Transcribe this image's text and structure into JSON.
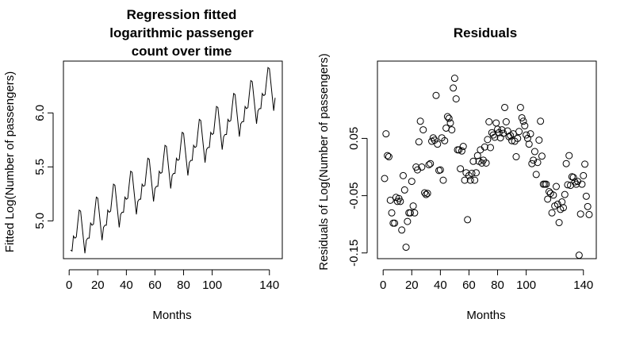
{
  "chart_data": [
    {
      "type": "line",
      "title_lines": [
        "Regression fitted",
        "logarithmic passenger",
        "count over time"
      ],
      "xlabel": "Months",
      "ylabel": "Fitted Log(Number of passengers)",
      "xlim": [
        -4,
        149
      ],
      "ylim": [
        4.65,
        6.48
      ],
      "xticks": [
        0,
        20,
        40,
        60,
        80,
        100,
        140
      ],
      "yticks": [
        5.0,
        5.5,
        6.0
      ],
      "ytick_labels": [
        "5.0",
        "5.5",
        "6.0"
      ],
      "x": [
        1,
        2,
        3,
        4,
        5,
        6,
        7,
        8,
        9,
        10,
        11,
        12,
        13,
        14,
        15,
        16,
        17,
        18,
        19,
        20,
        21,
        22,
        23,
        24,
        25,
        26,
        27,
        28,
        29,
        30,
        31,
        32,
        33,
        34,
        35,
        36,
        37,
        38,
        39,
        40,
        41,
        42,
        43,
        44,
        45,
        46,
        47,
        48,
        49,
        50,
        51,
        52,
        53,
        54,
        55,
        56,
        57,
        58,
        59,
        60,
        61,
        62,
        63,
        64,
        65,
        66,
        67,
        68,
        69,
        70,
        71,
        72,
        73,
        74,
        75,
        76,
        77,
        78,
        79,
        80,
        81,
        82,
        83,
        84,
        85,
        86,
        87,
        88,
        89,
        90,
        91,
        92,
        93,
        94,
        95,
        96,
        97,
        98,
        99,
        100,
        101,
        102,
        103,
        104,
        105,
        106,
        107,
        108,
        109,
        110,
        111,
        112,
        113,
        114,
        115,
        116,
        117,
        118,
        119,
        120,
        121,
        122,
        123,
        124,
        125,
        126,
        127,
        128,
        129,
        130,
        131,
        132,
        133,
        134,
        135,
        136,
        137,
        138,
        139,
        140,
        141,
        142,
        143,
        144
      ],
      "y": [
        4.73,
        4.72,
        4.86,
        4.84,
        4.85,
        4.98,
        5.1,
        5.09,
        4.96,
        4.83,
        4.7,
        4.82,
        4.84,
        4.84,
        4.98,
        4.96,
        4.97,
        5.1,
        5.22,
        5.21,
        5.08,
        4.95,
        4.82,
        4.94,
        4.96,
        4.96,
        5.1,
        5.08,
        5.09,
        5.22,
        5.34,
        5.33,
        5.2,
        5.07,
        4.94,
        5.06,
        5.08,
        5.08,
        5.22,
        5.2,
        5.21,
        5.34,
        5.46,
        5.45,
        5.32,
        5.19,
        5.06,
        5.18,
        5.2,
        5.2,
        5.34,
        5.32,
        5.33,
        5.46,
        5.58,
        5.57,
        5.44,
        5.31,
        5.18,
        5.3,
        5.32,
        5.32,
        5.46,
        5.44,
        5.45,
        5.58,
        5.7,
        5.69,
        5.56,
        5.43,
        5.3,
        5.42,
        5.44,
        5.44,
        5.58,
        5.56,
        5.57,
        5.7,
        5.82,
        5.81,
        5.68,
        5.55,
        5.42,
        5.54,
        5.56,
        5.56,
        5.7,
        5.68,
        5.69,
        5.82,
        5.94,
        5.93,
        5.8,
        5.67,
        5.54,
        5.66,
        5.68,
        5.68,
        5.82,
        5.8,
        5.81,
        5.94,
        6.06,
        6.05,
        5.92,
        5.79,
        5.66,
        5.78,
        5.8,
        5.8,
        5.94,
        5.92,
        5.93,
        6.06,
        6.18,
        6.17,
        6.04,
        5.91,
        5.78,
        5.9,
        5.92,
        5.92,
        6.06,
        6.04,
        6.05,
        6.18,
        6.3,
        6.29,
        6.16,
        6.03,
        5.9,
        6.02,
        6.04,
        6.04,
        6.18,
        6.16,
        6.17,
        6.3,
        6.42,
        6.41,
        6.28,
        6.15,
        6.02,
        6.14
      ]
    },
    {
      "type": "scatter",
      "title": "Residuals",
      "xlabel": "Months",
      "ylabel": "Residuals of Log(Number of passengers)",
      "xlim": [
        -4,
        149
      ],
      "ylim": [
        -0.16,
        0.185
      ],
      "xticks": [
        0,
        20,
        40,
        60,
        80,
        100,
        140
      ],
      "yticks": [
        -0.15,
        -0.05,
        0.05
      ],
      "ytick_labels": [
        "-0.15",
        "-0.05",
        "0.05"
      ],
      "x": [
        1,
        2,
        3,
        4,
        5,
        6,
        7,
        8,
        9,
        10,
        11,
        12,
        13,
        14,
        15,
        16,
        17,
        18,
        19,
        20,
        21,
        22,
        23,
        24,
        25,
        26,
        27,
        28,
        29,
        30,
        31,
        32,
        33,
        34,
        35,
        36,
        37,
        38,
        39,
        40,
        41,
        42,
        43,
        44,
        45,
        46,
        47,
        48,
        49,
        50,
        51,
        52,
        53,
        54,
        55,
        56,
        57,
        58,
        59,
        60,
        61,
        62,
        63,
        64,
        65,
        66,
        67,
        68,
        69,
        70,
        71,
        72,
        73,
        74,
        75,
        76,
        77,
        78,
        79,
        80,
        81,
        82,
        83,
        84,
        85,
        86,
        87,
        88,
        89,
        90,
        91,
        92,
        93,
        94,
        95,
        96,
        97,
        98,
        99,
        100,
        101,
        102,
        103,
        104,
        105,
        106,
        107,
        108,
        109,
        110,
        111,
        112,
        113,
        114,
        115,
        116,
        117,
        118,
        119,
        120,
        121,
        122,
        123,
        124,
        125,
        126,
        127,
        128,
        129,
        130,
        131,
        132,
        133,
        134,
        135,
        136,
        137,
        138,
        139,
        140,
        141,
        142,
        143,
        144
      ],
      "y": [
        -0.02,
        0.058,
        0.02,
        0.018,
        -0.058,
        -0.08,
        -0.098,
        -0.098,
        -0.053,
        -0.06,
        -0.055,
        -0.06,
        -0.11,
        -0.015,
        -0.04,
        -0.14,
        -0.095,
        -0.08,
        -0.08,
        -0.025,
        -0.068,
        -0.08,
        0.0,
        -0.005,
        0.044,
        0.08,
        0.0,
        0.065,
        -0.045,
        -0.048,
        -0.046,
        0.004,
        0.006,
        0.045,
        0.051,
        0.047,
        0.125,
        0.04,
        -0.006,
        -0.005,
        0.051,
        -0.023,
        0.046,
        0.068,
        0.088,
        0.085,
        0.077,
        0.065,
        0.138,
        0.155,
        0.119,
        0.03,
        0.03,
        -0.003,
        0.028,
        0.036,
        -0.023,
        -0.01,
        -0.092,
        -0.015,
        -0.023,
        -0.011,
        0.01,
        -0.023,
        -0.01,
        0.02,
        0.01,
        0.03,
        0.007,
        0.012,
        0.035,
        0.007,
        0.048,
        0.079,
        0.034,
        0.06,
        0.056,
        0.052,
        0.077,
        0.066,
        0.06,
        0.051,
        0.065,
        0.059,
        0.104,
        0.079,
        0.063,
        0.053,
        0.055,
        0.046,
        0.058,
        0.045,
        0.018,
        0.05,
        0.062,
        0.104,
        0.086,
        0.08,
        0.072,
        0.056,
        0.05,
        0.04,
        0.058,
        0.006,
        0.012,
        0.027,
        -0.013,
        0.008,
        0.047,
        0.08,
        0.019,
        -0.03,
        -0.03,
        -0.03,
        -0.056,
        -0.043,
        -0.046,
        -0.08,
        -0.049,
        -0.068,
        -0.034,
        -0.065,
        -0.097,
        -0.074,
        -0.061,
        -0.071,
        -0.048,
        0.006,
        -0.031,
        0.02,
        -0.032,
        -0.017,
        -0.018,
        -0.026,
        -0.03,
        -0.025,
        -0.154,
        -0.082,
        -0.03,
        -0.015,
        0.005,
        -0.051,
        -0.069,
        -0.083
      ]
    }
  ]
}
